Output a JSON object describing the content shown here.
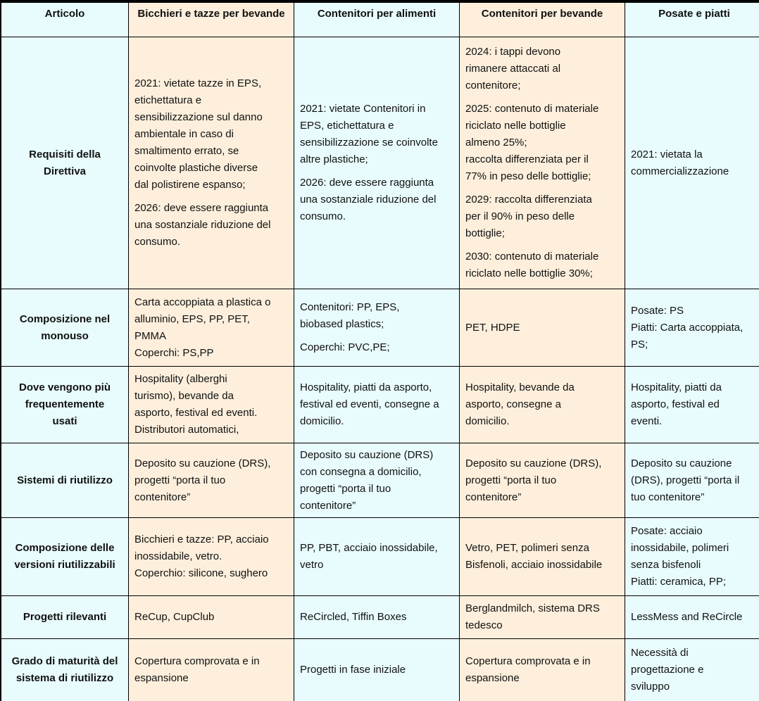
{
  "headers": [
    "Articolo",
    "Bicchieri e tazze per bevande",
    "Contenitori per alimenti",
    "Contenitori per bevande",
    "Posate e piatti"
  ],
  "rows": [
    {
      "label": "Requisiti della\nDirettiva",
      "cells": [
        [
          "2021: vietate tazze in EPS,\netichettatura e\nsensibilizzazione sul danno\nambientale in caso di\nsmaltimento errato, se\ncoinvolte plastiche diverse\ndal polistirene espanso;",
          "2026: deve essere raggiunta\nuna sostanziale riduzione del\nconsumo."
        ],
        [
          "2021: vietate Contenitori in\nEPS, etichettatura e\nsensibilizzazione se coinvolte\naltre plastiche;",
          "2026: deve essere raggiunta\nuna sostanziale riduzione del\nconsumo."
        ],
        [
          "2024: i tappi devono\nrimanere attaccati al\ncontenitore;",
          "2025: contenuto di materiale\nriciclato nelle bottiglie\nalmeno 25%;\nraccolta differenziata per il\n77% in peso delle bottiglie;",
          "2029: raccolta differenziata\nper il 90% in peso delle\nbottiglie;",
          "2030: contenuto di materiale\nriciclato nelle bottiglie 30%;"
        ],
        [
          "2021: vietata la\ncommercializzazione"
        ]
      ]
    },
    {
      "label": "Composizione nel\nmonouso",
      "cells": [
        [
          "Carta accoppiata a plastica o\nalluminio, EPS, PP, PET,\nPMMA\nCoperchi: PS,PP"
        ],
        [
          "Contenitori: PP, EPS,\nbiobased plastics;",
          "Coperchi: PVC,PE;"
        ],
        [
          "PET, HDPE"
        ],
        [
          "Posate: PS\nPiatti: Carta accoppiata,\nPS;"
        ]
      ]
    },
    {
      "label": "Dove vengono più\nfrequentemente\nusati",
      "cells": [
        [
          "Hospitality (alberghi\nturismo), bevande da\nasporto, festival ed eventi.\nDistributori automatici,"
        ],
        [
          "Hospitality, piatti da asporto,\nfestival ed eventi, consegne a\ndomicilio."
        ],
        [
          "Hospitality, bevande da\nasporto, consegne a\ndomicilio."
        ],
        [
          "Hospitality, piatti da\nasporto, festival ed\neventi."
        ]
      ]
    },
    {
      "label": "Sistemi di riutilizzo",
      "cells": [
        [
          "Deposito su cauzione (DRS),\nprogetti “porta il tuo\ncontenitore”"
        ],
        [
          "Deposito su cauzione (DRS)\ncon consegna a domicilio,\nprogetti “porta il tuo\ncontenitore”"
        ],
        [
          "Deposito su cauzione (DRS),\nprogetti “porta il tuo\ncontenitore”"
        ],
        [
          "Deposito su cauzione\n(DRS), progetti “porta il\ntuo contenitore”"
        ]
      ]
    },
    {
      "label": "Composizione delle\nversioni riutilizzabili",
      "cells": [
        [
          "Bicchieri e tazze: PP, acciaio\ninossidabile, vetro.\nCoperchio: silicone, sughero"
        ],
        [
          "PP, PBT, acciaio inossidabile,\nvetro"
        ],
        [
          "Vetro, PET, polimeri senza\nBisfenoli, acciaio inossidabile"
        ],
        [
          "Posate: acciaio\ninossidabile, polimeri\nsenza bisfenoli\nPiatti: ceramica, PP;"
        ]
      ]
    },
    {
      "label": "Progetti rilevanti",
      "cells": [
        [
          "ReCup, CupClub"
        ],
        [
          "ReCircled, Tiffin Boxes"
        ],
        [
          "Berglandmilch, sistema DRS\ntedesco"
        ],
        [
          "LessMess and ReCircle"
        ]
      ]
    },
    {
      "label": "Grado di maturità del\nsistema di riutilizzo",
      "cells": [
        [
          "Copertura comprovata e in\nespansione"
        ],
        [
          "Progetti in fase iniziale"
        ],
        [
          "Copertura comprovata e in\nespansione"
        ],
        [
          "Necessità di\nprogettazione e\nsviluppo"
        ]
      ]
    }
  ],
  "colors": {
    "cyan": "#e8fbfd",
    "peach": "#fdefdc",
    "border": "#000000"
  }
}
